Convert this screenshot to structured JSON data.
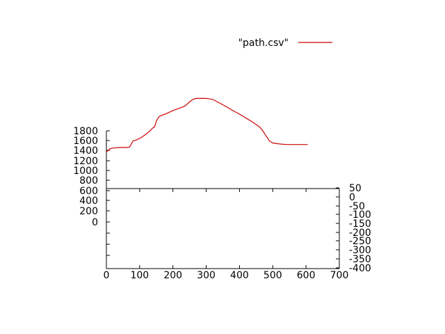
{
  "chart_data": {
    "type": "line",
    "legend": {
      "label": "\"path.csv\"",
      "placement": "top-right",
      "color": "#cc0000"
    },
    "x_axis": {
      "range": [
        0,
        700
      ],
      "ticks": [
        0,
        100,
        200,
        300,
        400,
        500,
        600,
        700
      ],
      "tick_labels": [
        "0",
        "100",
        "200",
        "300",
        "400",
        "500",
        "600",
        "700"
      ]
    },
    "y_axis_left": {
      "ticks": [
        1800,
        1600,
        1400,
        1200,
        1000,
        800,
        600,
        400,
        200,
        0
      ],
      "tick_labels": [
        "1800",
        "1600",
        "1400",
        "1200",
        "1000",
        "800",
        "600",
        "400",
        "200",
        "0"
      ]
    },
    "y_axis_right": {
      "ticks": [
        50,
        0,
        -50,
        -100,
        -150,
        -200,
        -250,
        -300,
        -350,
        -400
      ],
      "tick_labels": [
        "50",
        "0",
        "-50",
        "-100",
        "-150",
        "-200",
        "-250",
        "-300",
        "-350",
        "-400"
      ]
    },
    "grid": false,
    "series": [
      {
        "name": "\"path.csv\"",
        "color": "#cc0000",
        "x": [
          0,
          10,
          20,
          40,
          60,
          70,
          75,
          80,
          90,
          100,
          110,
          120,
          130,
          140,
          145,
          150,
          155,
          160,
          180,
          200,
          220,
          230,
          240,
          250,
          260,
          270,
          300,
          310,
          320,
          340,
          360,
          380,
          400,
          420,
          440,
          460,
          470,
          480,
          490,
          500,
          520,
          540,
          560,
          580,
          605
        ],
        "y": [
          1380,
          1440,
          1460,
          1470,
          1470,
          1480,
          1540,
          1600,
          1620,
          1650,
          1690,
          1740,
          1790,
          1860,
          1880,
          1990,
          2050,
          2090,
          2140,
          2200,
          2250,
          2270,
          2310,
          2370,
          2420,
          2440,
          2440,
          2430,
          2420,
          2350,
          2280,
          2200,
          2130,
          2050,
          1970,
          1880,
          1800,
          1700,
          1600,
          1560,
          1540,
          1530,
          1530,
          1530,
          1530
        ]
      }
    ]
  }
}
